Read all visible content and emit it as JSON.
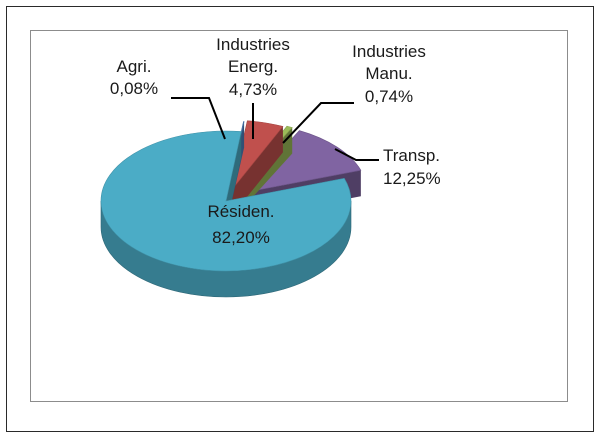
{
  "chart_data": {
    "type": "pie",
    "style": "3d-exploded",
    "title": "",
    "slices": [
      {
        "label": "Résiden.",
        "value_text": "82,20%",
        "value": 82.2,
        "color": "#4BACC6"
      },
      {
        "label": "Agri.",
        "value_text": "0,08%",
        "value": 0.08,
        "color": "#4F81BD"
      },
      {
        "label": "Industries Energ.",
        "label_lines": [
          "Industries",
          "Energ."
        ],
        "value_text": "4,73%",
        "value": 4.73,
        "color": "#C0504D"
      },
      {
        "label": "Industries Manu.",
        "label_lines": [
          "Industries",
          "Manu."
        ],
        "value_text": "0,74%",
        "value": 0.74,
        "color": "#9BBB59"
      },
      {
        "label": "Transp.",
        "value_text": "12,25%",
        "value": 12.25,
        "color": "#8064A2"
      }
    ]
  }
}
